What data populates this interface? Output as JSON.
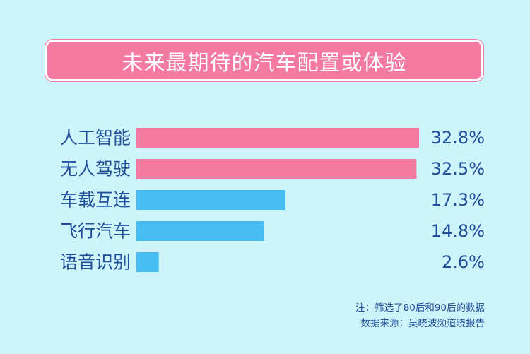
{
  "chart_data": {
    "type": "bar",
    "orientation": "horizontal",
    "title": "未来最期待的汽车配置或体验",
    "categories": [
      "人工智能",
      "无人驾驶",
      "车载互连",
      "飞行汽车",
      "语音识别"
    ],
    "values": [
      32.8,
      32.5,
      17.3,
      14.8,
      2.6
    ],
    "value_labels": [
      "32.8%",
      "32.5%",
      "17.3%",
      "14.8%",
      "2.6%"
    ],
    "colors": [
      "#f47aa1",
      "#f47aa1",
      "#46bdf2",
      "#46bdf2",
      "#46bdf2"
    ],
    "xlim": [
      0,
      32.8
    ]
  },
  "notes": {
    "filter_note": "注：筛选了80后和90后的数据",
    "source_note": "数据来源：吴晓波频道晓报告"
  },
  "colors": {
    "background": "#cdf3fb",
    "title_bg": "#f47aa1",
    "text": "#1f4e9a"
  }
}
